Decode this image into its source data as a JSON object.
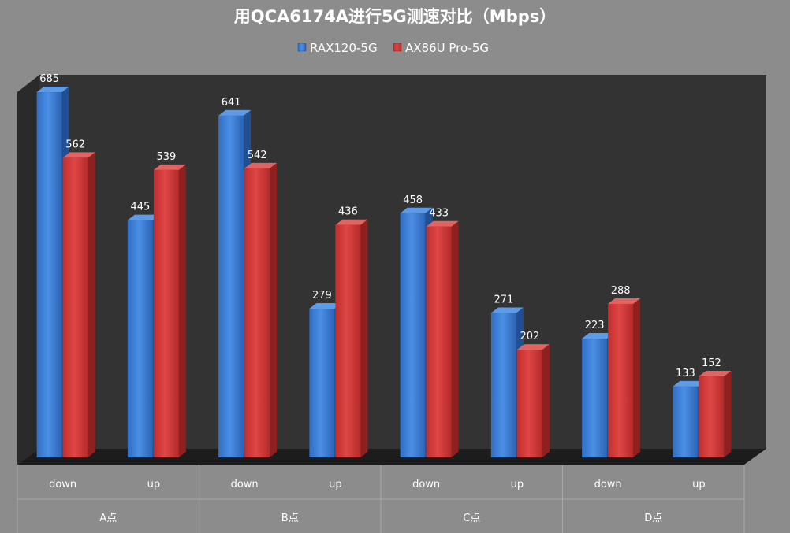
{
  "chart_data": {
    "type": "bar",
    "title": "用QCA6174A进行5G测速对比（Mbps）",
    "xlabel": "",
    "ylabel": "",
    "ylim": [
      0,
      700
    ],
    "grid": false,
    "legend_position": "top",
    "categories": [
      "down",
      "up",
      "down",
      "up",
      "down",
      "up",
      "down",
      "up"
    ],
    "groups": [
      "A点",
      "B点",
      "C点",
      "D点"
    ],
    "series": [
      {
        "name": "RAX120-5G",
        "color": "#3a7fd5",
        "values": [
          685,
          445,
          641,
          279,
          458,
          271,
          223,
          133
        ]
      },
      {
        "name": "AX86U Pro-5G",
        "color": "#d23a3a",
        "values": [
          562,
          539,
          542,
          436,
          433,
          202,
          288,
          152
        ]
      }
    ]
  }
}
